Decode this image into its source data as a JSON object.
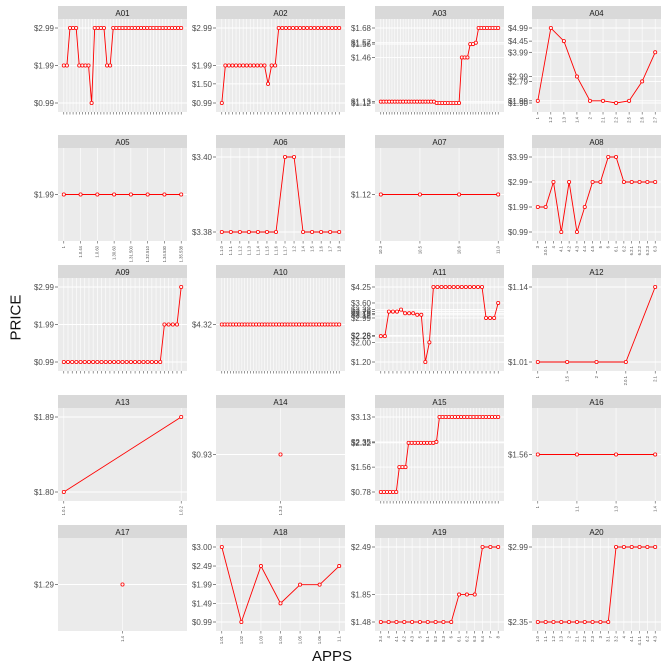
{
  "axes": {
    "xlabel": "APPS",
    "ylabel": "PRICE"
  },
  "colors": {
    "line": "#ff0000",
    "panel_bg": "#ebebeb",
    "strip_bg": "#d9d9d9",
    "grid": "#ffffff",
    "text": "#4d4d4d"
  },
  "chart_data": [
    {
      "type": "line",
      "title": "A01",
      "yticks": [
        "$0.99",
        "$1.99",
        "$2.99"
      ],
      "values": [
        1.99,
        1.99,
        2.99,
        2.99,
        2.99,
        1.99,
        1.99,
        1.99,
        1.99,
        0.99,
        2.99,
        2.99,
        2.99,
        2.99,
        1.99,
        1.99,
        2.99,
        2.99,
        2.99,
        2.99,
        2.99,
        2.99,
        2.99,
        2.99,
        2.99,
        2.99,
        2.99,
        2.99,
        2.99,
        2.99,
        2.99,
        2.99,
        2.99,
        2.99,
        2.99,
        2.99,
        2.99,
        2.99,
        2.99
      ]
    },
    {
      "type": "line",
      "title": "A02",
      "yticks": [
        "$0.99",
        "$1.50",
        "$1.99",
        "$2.99"
      ],
      "values": [
        0.99,
        1.99,
        1.99,
        1.99,
        1.99,
        1.99,
        1.99,
        1.99,
        1.99,
        1.99,
        1.99,
        1.99,
        1.99,
        1.5,
        1.99,
        1.99,
        2.99,
        2.99,
        2.99,
        2.99,
        2.99,
        2.99,
        2.99,
        2.99,
        2.99,
        2.99,
        2.99,
        2.99,
        2.99,
        2.99,
        2.99,
        2.99,
        2.99,
        2.99
      ]
    },
    {
      "type": "line",
      "title": "A03",
      "yticks": [
        "$1.12",
        "$1.13",
        "$1.46",
        "$1.56",
        "$1.57",
        "$1.68"
      ],
      "values": [
        1.13,
        1.13,
        1.13,
        1.13,
        1.13,
        1.13,
        1.13,
        1.13,
        1.13,
        1.13,
        1.13,
        1.13,
        1.13,
        1.13,
        1.13,
        1.13,
        1.13,
        1.13,
        1.13,
        1.13,
        1.12,
        1.12,
        1.12,
        1.12,
        1.12,
        1.12,
        1.12,
        1.12,
        1.12,
        1.46,
        1.46,
        1.46,
        1.56,
        1.56,
        1.57,
        1.68,
        1.68,
        1.68,
        1.68,
        1.68,
        1.68,
        1.68,
        1.68
      ]
    },
    {
      "type": "line",
      "title": "A04",
      "yticks": [
        "$1.90",
        "$1.99",
        "$2.79",
        "$2.99",
        "$3.99",
        "$4.45",
        "$4.99"
      ],
      "tick_labels": [
        "1",
        "1.2",
        "1.3",
        "1.4",
        "2",
        "2.1",
        "2.2",
        "2.5",
        "2.6",
        "2.7"
      ],
      "values": [
        1.99,
        4.99,
        4.45,
        2.99,
        1.99,
        1.99,
        1.9,
        1.99,
        2.79,
        3.99
      ]
    },
    {
      "type": "line",
      "title": "A05",
      "yticks": [
        "$1.99"
      ],
      "tick_labels": [
        "1",
        "1.0.44",
        "1.0.60",
        "1.30.60",
        "1.31.500",
        "1.32.510",
        "1.34.530",
        "1.35.538"
      ],
      "values": [
        1.99,
        1.99,
        1.99,
        1.99,
        1.99,
        1.99,
        1.99,
        1.99
      ]
    },
    {
      "type": "line",
      "title": "A06",
      "yticks": [
        "$3.38",
        "$3.40"
      ],
      "tick_labels": [
        "1.1.0",
        "1.1.1",
        "1.1.2",
        "1.1.3",
        "1.1.4",
        "1.1.5",
        "1.1.6",
        "1.1.7",
        "1.2",
        "1.4",
        "1.5",
        "1.6",
        "1.7",
        "1.8"
      ],
      "values": [
        3.38,
        3.38,
        3.38,
        3.38,
        3.38,
        3.38,
        3.38,
        3.4,
        3.4,
        3.38,
        3.38,
        3.38,
        3.38,
        3.38
      ]
    },
    {
      "type": "line",
      "title": "A07",
      "yticks": [
        "$1.12"
      ],
      "tick_labels": [
        "10.3",
        "10.5",
        "10.6",
        "11.0"
      ],
      "values": [
        1.12,
        1.12,
        1.12,
        1.12
      ]
    },
    {
      "type": "line",
      "title": "A08",
      "yticks": [
        "$0.99",
        "$1.99",
        "$2.99",
        "$3.99"
      ],
      "tick_labels": [
        "3",
        "3.0.1",
        "4",
        "4.1",
        "4.2",
        "4.3",
        "4.4",
        "4.5",
        "5",
        "6",
        "6.1",
        "6.2",
        "6.2.1",
        "6.2.2",
        "6.2.3",
        "6.3"
      ],
      "values": [
        1.99,
        1.99,
        2.99,
        0.99,
        2.99,
        0.99,
        1.99,
        2.99,
        2.99,
        3.99,
        3.99,
        2.99,
        2.99,
        2.99,
        2.99,
        2.99
      ]
    },
    {
      "type": "line",
      "title": "A09",
      "yticks": [
        "$0.99",
        "$1.99",
        "$2.99"
      ],
      "values": [
        0.99,
        0.99,
        0.99,
        0.99,
        0.99,
        0.99,
        0.99,
        0.99,
        0.99,
        0.99,
        0.99,
        0.99,
        0.99,
        0.99,
        0.99,
        0.99,
        0.99,
        0.99,
        0.99,
        0.99,
        0.99,
        0.99,
        0.99,
        0.99,
        1.99,
        1.99,
        1.99,
        1.99,
        2.99
      ]
    },
    {
      "type": "line",
      "title": "A10",
      "yticks": [
        "$4.32"
      ],
      "values": [
        4.32,
        4.32,
        4.32,
        4.32,
        4.32,
        4.32,
        4.32,
        4.32,
        4.32,
        4.32,
        4.32,
        4.32,
        4.32,
        4.32,
        4.32,
        4.32,
        4.32,
        4.32,
        4.32,
        4.32,
        4.32,
        4.32,
        4.32,
        4.32,
        4.32,
        4.32,
        4.32,
        4.32,
        4.32,
        4.32,
        4.32,
        4.32,
        4.32,
        4.32,
        4.32,
        4.32,
        4.32,
        4.32,
        4.32,
        4.32,
        4.32,
        4.32
      ]
    },
    {
      "type": "line",
      "title": "A11",
      "yticks": [
        "$1.20",
        "$2.00",
        "$2.25",
        "$2.28",
        "$2.99",
        "$3.12",
        "$3.18",
        "$3.25",
        "$3.33",
        "$3.60",
        "$4.25"
      ],
      "values": [
        2.25,
        2.25,
        3.25,
        3.25,
        3.25,
        3.33,
        3.18,
        3.18,
        3.18,
        3.12,
        3.12,
        1.2,
        2.0,
        4.25,
        4.25,
        4.25,
        4.25,
        4.25,
        4.25,
        4.25,
        4.25,
        4.25,
        4.25,
        4.25,
        4.25,
        4.25,
        2.99,
        2.99,
        2.99,
        3.6
      ]
    },
    {
      "type": "line",
      "title": "A12",
      "yticks": [
        "$1.01",
        "$1.14"
      ],
      "tick_labels": [
        "1",
        "1.5",
        "2",
        "2.0.1",
        "2.1"
      ],
      "values": [
        1.01,
        1.01,
        1.01,
        1.01,
        1.14
      ]
    },
    {
      "type": "line",
      "title": "A13",
      "yticks": [
        "$1.80",
        "$1.89"
      ],
      "tick_labels": [
        "1.0.1",
        "1.0.2"
      ],
      "values": [
        1.8,
        1.89
      ]
    },
    {
      "type": "line",
      "title": "A14",
      "yticks": [
        "$0.93"
      ],
      "tick_labels": [
        "1.3.3"
      ],
      "values": [
        0.93
      ]
    },
    {
      "type": "line",
      "title": "A15",
      "yticks": [
        "$0.78",
        "$1.56",
        "$2.32",
        "$2.35",
        "$3.13"
      ],
      "values": [
        0.78,
        0.78,
        0.78,
        0.78,
        0.78,
        0.78,
        1.56,
        1.56,
        1.56,
        2.32,
        2.32,
        2.32,
        2.32,
        2.32,
        2.32,
        2.32,
        2.32,
        2.32,
        2.35,
        3.13,
        3.13,
        3.13,
        3.13,
        3.13,
        3.13,
        3.13,
        3.13,
        3.13,
        3.13,
        3.13,
        3.13,
        3.13,
        3.13,
        3.13,
        3.13,
        3.13,
        3.13,
        3.13,
        3.13
      ]
    },
    {
      "type": "line",
      "title": "A16",
      "yticks": [
        "$1.56"
      ],
      "tick_labels": [
        "1",
        "1.1",
        "1.3",
        "1.4"
      ],
      "values": [
        1.56,
        1.56,
        1.56,
        1.56
      ]
    },
    {
      "type": "line",
      "title": "A17",
      "yticks": [
        "$1.29"
      ],
      "tick_labels": [
        "1.4"
      ],
      "values": [
        1.29
      ]
    },
    {
      "type": "line",
      "title": "A18",
      "yticks": [
        "$0.99",
        "$1.49",
        "$1.99",
        "$2.49",
        "$3.00"
      ],
      "tick_labels": [
        "1.01",
        "1.02",
        "1.03",
        "1.04",
        "1.05",
        "1.06",
        "1.1"
      ],
      "values": [
        3.0,
        0.99,
        2.49,
        1.49,
        1.99,
        1.99,
        2.49
      ]
    },
    {
      "type": "line",
      "title": "A19",
      "yticks": [
        "$1.48",
        "$1.85",
        "$2.49"
      ],
      "tick_labels": [
        "3.4",
        "4",
        "4.1",
        "4.2",
        "4.3",
        "5",
        "5.1",
        "5.2",
        "5.3",
        "6",
        "6.1",
        "6.2",
        "6.3",
        "6.4",
        "7",
        "8"
      ],
      "values": [
        1.48,
        1.48,
        1.48,
        1.48,
        1.48,
        1.48,
        1.48,
        1.48,
        1.48,
        1.48,
        1.85,
        1.85,
        1.85,
        2.49,
        2.49,
        2.49
      ]
    },
    {
      "type": "line",
      "title": "A20",
      "yticks": [
        "$2.35",
        "$2.99"
      ],
      "tick_labels": [
        "1.0",
        "1.1",
        "1.2",
        "1.3",
        "2",
        "2.1",
        "2.2",
        "2.3",
        "3",
        "3.1",
        "3.2",
        "4",
        "4.1",
        "4.1.1",
        "4.2",
        "4.3"
      ],
      "values": [
        2.35,
        2.35,
        2.35,
        2.35,
        2.35,
        2.35,
        2.35,
        2.35,
        2.35,
        2.35,
        2.99,
        2.99,
        2.99,
        2.99,
        2.99,
        2.99
      ]
    }
  ]
}
